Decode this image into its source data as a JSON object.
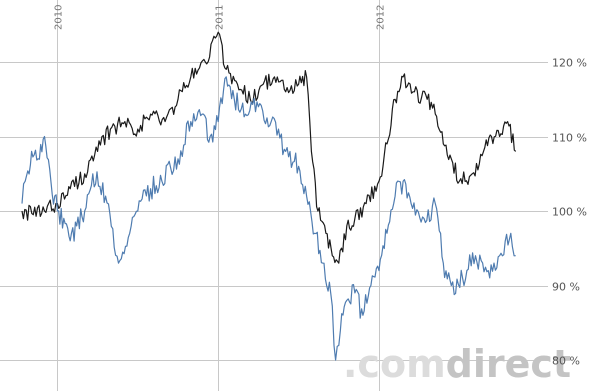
{
  "watermark": {
    "prefix": ".com",
    "suffix": "direct"
  },
  "chart_data": {
    "type": "line",
    "title": "",
    "xlabel": "",
    "ylabel": "",
    "y_unit": "%",
    "ylim": [
      78,
      127
    ],
    "xlim": [
      2009.78,
      2013.02
    ],
    "grid": true,
    "legend": "none",
    "x_ticks": [
      "2010",
      "2011",
      "2012"
    ],
    "x_tick_values": [
      2010.0,
      2011.0,
      2012.0
    ],
    "y_ticks": [
      "80 %",
      "90 %",
      "100 %",
      "110 %",
      "120 %"
    ],
    "y_tick_values": [
      80,
      90,
      100,
      110,
      120
    ],
    "series": [
      {
        "color": "#1a1a1a",
        "x": [
          2009.78,
          2009.85,
          2009.92,
          2010.0,
          2010.08,
          2010.17,
          2010.25,
          2010.33,
          2010.42,
          2010.5,
          2010.58,
          2010.67,
          2010.75,
          2010.83,
          2010.92,
          2011.0,
          2011.05,
          2011.12,
          2011.2,
          2011.28,
          2011.35,
          2011.42,
          2011.5,
          2011.55,
          2011.58,
          2011.62,
          2011.67,
          2011.71,
          2011.75,
          2011.8,
          2011.85,
          2011.92,
          2012.0,
          2012.05,
          2012.1,
          2012.15,
          2012.22,
          2012.3,
          2012.35,
          2012.4,
          2012.45,
          2012.5,
          2012.58,
          2012.65,
          2012.7,
          2012.75,
          2012.8,
          2012.85
        ],
        "values": [
          100,
          99.5,
          100,
          101,
          103,
          105,
          108,
          111,
          112,
          111,
          113,
          112,
          115,
          118,
          120,
          124,
          119,
          117,
          115,
          117,
          118,
          116,
          117,
          118,
          108,
          100,
          97,
          94,
          93,
          98,
          99,
          101,
          104,
          109,
          115,
          118,
          116,
          115,
          113,
          109,
          107,
          104,
          105,
          108,
          110,
          110,
          112,
          108
        ]
      },
      {
        "color": "#4f7cb0",
        "x": [
          2009.78,
          2009.8,
          2009.84,
          2009.88,
          2009.92,
          2009.96,
          2010.0,
          2010.04,
          2010.08,
          2010.12,
          2010.17,
          2010.22,
          2010.3,
          2010.38,
          2010.45,
          2010.5,
          2010.58,
          2010.65,
          2010.75,
          2010.83,
          2010.9,
          2010.95,
          2011.0,
          2011.05,
          2011.1,
          2011.17,
          2011.25,
          2011.33,
          2011.42,
          2011.5,
          2011.55,
          2011.6,
          2011.65,
          2011.7,
          2011.73,
          2011.76,
          2011.8,
          2011.85,
          2011.9,
          2011.95,
          2012.0,
          2012.05,
          2012.1,
          2012.15,
          2012.2,
          2012.28,
          2012.35,
          2012.4,
          2012.45,
          2012.52,
          2012.6,
          2012.68,
          2012.75,
          2012.82,
          2012.85
        ],
        "values": [
          101,
          104,
          108,
          107,
          110,
          104,
          100,
          99,
          96,
          98,
          100,
          105,
          102,
          93,
          97,
          100,
          103,
          104,
          107,
          112,
          113,
          110,
          112,
          118,
          115,
          113,
          114,
          112,
          108,
          106,
          102,
          97,
          93,
          89,
          80,
          84,
          88,
          89,
          86,
          90,
          92,
          97,
          102,
          104,
          101,
          99,
          101,
          93,
          90,
          91,
          94,
          92,
          94,
          97,
          94
        ]
      }
    ]
  }
}
